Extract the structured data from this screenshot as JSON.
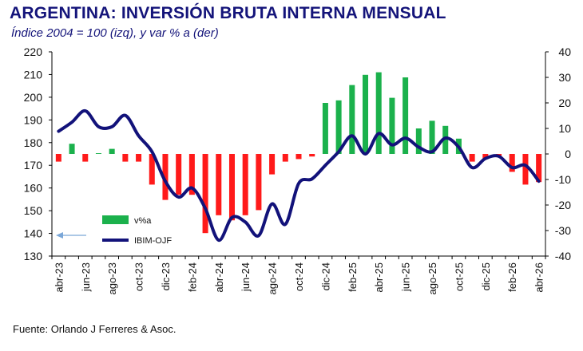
{
  "header": {
    "title": "ARGENTINA: INVERSIÓN BRUTA INTERNA MENSUAL",
    "subtitle": "Índice 2004 = 100 (izq), y var % a (der)"
  },
  "footer": {
    "source": "Fuente: Orlando J Ferreres & Asoc."
  },
  "colors": {
    "title": "#14147a",
    "line": "#12127a",
    "bar_positive": "#1bb14c",
    "bar_negative": "#ff1a1a",
    "arrow": "#7ba7d8"
  },
  "chart_data": {
    "type": "bar+line",
    "x": [
      "abr-23",
      "may-23",
      "jun-23",
      "jul-23",
      "ago-23",
      "sep-23",
      "oct-23",
      "nov-23",
      "dic-23",
      "ene-24",
      "feb-24",
      "mar-24",
      "abr-24",
      "may-24",
      "jun-24",
      "jul-24",
      "ago-24",
      "sep-24",
      "oct-24",
      "nov-24",
      "dic-24",
      "ene-25",
      "feb-25",
      "mar-25",
      "abr-25",
      "may-25",
      "jun-25",
      "jul-25",
      "ago-25",
      "sep-25",
      "oct-25",
      "nov-25",
      "dic-25",
      "ene-26",
      "feb-26",
      "mar-26",
      "abr-26"
    ],
    "x_tick_labels": [
      "abr-23",
      "jun-23",
      "ago-23",
      "oct-23",
      "dic-23",
      "feb-24",
      "abr-24",
      "jun-24",
      "ago-24",
      "oct-24",
      "dic-24",
      "feb-25",
      "abr-25",
      "jun-25",
      "ago-25",
      "oct-25",
      "dic-25",
      "feb-26",
      "abr-26"
    ],
    "y_left": {
      "min": 130,
      "max": 220,
      "ticks": [
        130,
        140,
        150,
        160,
        170,
        180,
        190,
        200,
        210,
        220
      ]
    },
    "y_right": {
      "min": -40,
      "max": 40,
      "ticks": [
        -40,
        -30,
        -20,
        -10,
        0,
        10,
        20,
        30,
        40
      ]
    },
    "series": [
      {
        "name": "v%a",
        "type": "bar",
        "axis": "right",
        "values": [
          -3,
          4,
          -3,
          0.3,
          2,
          -3,
          -3,
          -12,
          -18,
          -16,
          -16,
          -31,
          -24,
          -26,
          -24,
          -22,
          -8,
          -3,
          -2,
          -1,
          20,
          21,
          27,
          31,
          32,
          22,
          30,
          10,
          13,
          11,
          6,
          -3,
          -2,
          -1,
          -7,
          -12,
          -11
        ]
      },
      {
        "name": "IBIM-OJF",
        "type": "line",
        "axis": "left",
        "values": [
          185,
          189,
          194,
          187,
          187,
          192,
          183,
          176,
          163,
          156,
          160,
          151,
          137,
          147,
          145,
          139,
          153,
          144,
          162,
          164,
          170,
          176,
          183,
          175,
          184,
          179,
          182,
          178,
          176,
          182,
          178,
          169,
          173,
          174,
          169,
          170,
          163
        ]
      }
    ],
    "legend": [
      {
        "label": "v%a"
      },
      {
        "label": "IBIM-OJF"
      }
    ],
    "legend_position": "bottom-left",
    "annotation": "arrow pointing to left axis",
    "grid": false
  }
}
